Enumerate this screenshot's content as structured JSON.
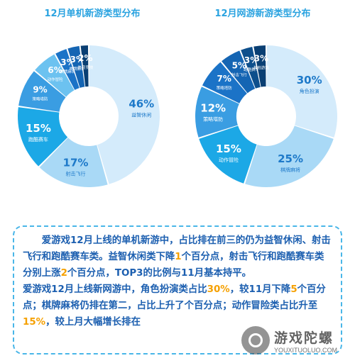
{
  "chart_data": [
    {
      "type": "pie",
      "donut": true,
      "title": "12月单机新游类型分布",
      "slices": [
        {
          "label": "益智休闲",
          "value": 46,
          "display": "46%",
          "color": "#d4ebfb",
          "text_color": "#1d79c9"
        },
        {
          "label": "射击飞行",
          "value": 17,
          "display": "17%",
          "color": "#a9d9f6",
          "text_color": "#1d79c9"
        },
        {
          "label": "跑酷赛车",
          "value": 15,
          "display": "15%",
          "color": "#1ca8e6",
          "text_color": "#ffffff"
        },
        {
          "label": "策略塔防",
          "value": 9,
          "display": "9%",
          "color": "#3a9de2",
          "text_color": "#ffffff"
        },
        {
          "label": "动作冒险",
          "value": 6,
          "display": "6%",
          "color": "#6cc2f0",
          "text_color": "#ffffff"
        },
        {
          "label": "棋牌麻将",
          "value": 3,
          "display": "3%",
          "color": "#1b73c7",
          "text_color": "#ffffff"
        },
        {
          "label": "棋牌麻将",
          "value": 3,
          "display": "3%",
          "color": "#1565b3",
          "text_color": "#ffffff"
        },
        {
          "label": "体育竞技",
          "value": 2,
          "display": "2%",
          "color": "#0a3f73",
          "text_color": "#ffffff"
        }
      ]
    },
    {
      "type": "pie",
      "donut": true,
      "title": "12月网游新游类型分布",
      "slices": [
        {
          "label": "角色扮演",
          "value": 30,
          "display": "30%",
          "color": "#d4ebfb",
          "text_color": "#1d79c9"
        },
        {
          "label": "棋牌麻将",
          "value": 25,
          "display": "25%",
          "color": "#a9d9f6",
          "text_color": "#1d79c9"
        },
        {
          "label": "动作冒险",
          "value": 15,
          "display": "15%",
          "color": "#1ca8e6",
          "text_color": "#ffffff"
        },
        {
          "label": "策略塔防",
          "value": 12,
          "display": "12%",
          "color": "#3a9de2",
          "text_color": "#ffffff"
        },
        {
          "label": "策略塔防",
          "value": 7,
          "display": "7%",
          "color": "#1b73c7",
          "text_color": "#ffffff"
        },
        {
          "label": "射击飞行",
          "value": 5,
          "display": "5%",
          "color": "#1565b3",
          "text_color": "#ffffff"
        },
        {
          "label": "跑酷赛车",
          "value": 3,
          "display": "3%",
          "color": "#0e4f8c",
          "text_color": "#ffffff"
        },
        {
          "label": "其他游戏",
          "value": 3,
          "display": "3%",
          "color": "#0a3f73",
          "text_color": "#ffffff"
        }
      ]
    }
  ],
  "summary": {
    "para1": [
      {
        "t": "爱游戏12月上线的单机新游中，占比排在前三的仍为益智休闲、射击飞行和跑酷赛车类。益智休闲类下降"
      },
      {
        "t": "1",
        "hl": true
      },
      {
        "t": "个百分点，射击飞行和跑酷赛车类分别上涨"
      },
      {
        "t": "2",
        "hl": true
      },
      {
        "t": "个百分点，TOP3的比例与11月基本持平。"
      }
    ],
    "para2": [
      {
        "t": "爱游戏12月上线新网游中，角色扮演类占比"
      },
      {
        "t": "30%",
        "hl": true
      },
      {
        "t": "，较11月下降"
      },
      {
        "t": "5",
        "hl": true
      },
      {
        "t": "个百分点；棋牌麻将仍排在第二，占比上升了个百分点；动作冒险类占比升至"
      },
      {
        "t": "15%",
        "hl": true
      },
      {
        "t": "，较上月大幅增长排在"
      }
    ]
  },
  "watermark": {
    "name": "游戏陀螺",
    "url": "YOUXITUOLUO.COM"
  }
}
